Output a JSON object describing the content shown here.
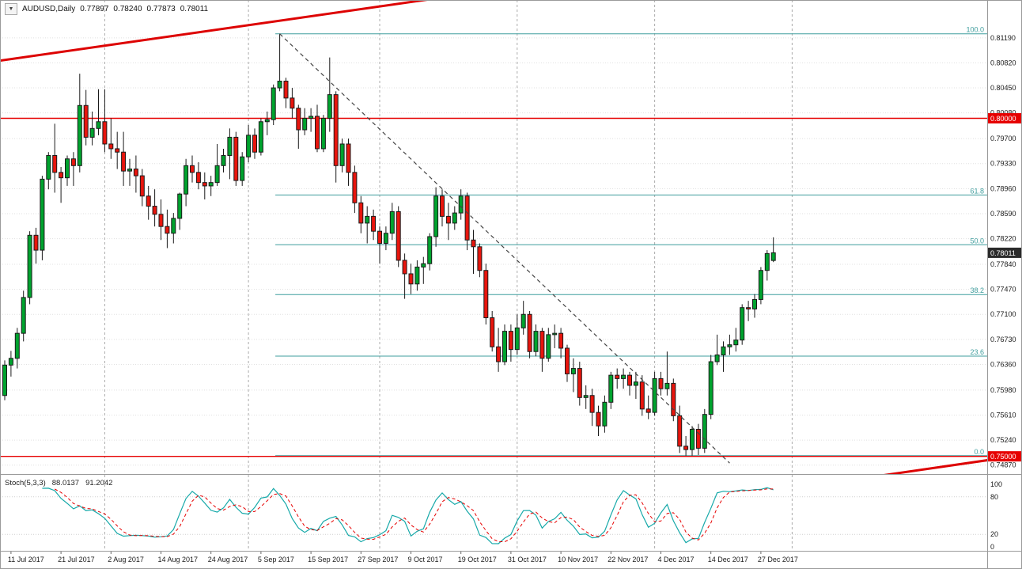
{
  "header": {
    "dropdown_icon": "▼",
    "symbol_period": "AUDUSD,Daily",
    "open": "0.77897",
    "high": "0.78240",
    "low": "0.77873",
    "close": "0.78011"
  },
  "colors": {
    "background": "#ffffff",
    "up": "#00a32e",
    "down": "#e8150d",
    "wick": "#1a1a1a",
    "grid": "#e0e0e0",
    "stoch_grid": "#cfcfcf",
    "separator": "#ababab",
    "fib": "#3f9d9d",
    "redline": "#e60000",
    "trend": "#dd0202",
    "dashed": "#444444",
    "stoch_main": "#17a9a9",
    "stoch_signal": "#e60000",
    "axis_text": "#1a1a1a",
    "tag_dark_bg": "#2a2a2a",
    "tag_text": "#ffffff",
    "frame": "#9a9a9a"
  },
  "chart_data": [
    {
      "type": "candlestick",
      "symbol": "AUDUSD",
      "timeframe": "Daily",
      "ohlc": [
        0.77897,
        0.7824,
        0.77873,
        0.78011
      ],
      "ylim": [
        0.7475,
        0.8175
      ],
      "y_ticks": [
        "0.81190",
        "0.80820",
        "0.80450",
        "0.80080",
        "0.79700",
        "0.79330",
        "0.78960",
        "0.78590",
        "0.78220",
        "0.77840",
        "0.77470",
        "0.77100",
        "0.76730",
        "0.76360",
        "0.75980",
        "0.75610",
        "0.75240",
        "0.74870"
      ],
      "x_labels": [
        {
          "i": 1,
          "t": "11 Jul 2017"
        },
        {
          "i": 9,
          "t": "21 Jul 2017"
        },
        {
          "i": 17,
          "t": "2 Aug 2017"
        },
        {
          "i": 25,
          "t": "14 Aug 2017"
        },
        {
          "i": 33,
          "t": "24 Aug 2017"
        },
        {
          "i": 41,
          "t": "5 Sep 2017"
        },
        {
          "i": 49,
          "t": "15 Sep 2017"
        },
        {
          "i": 57,
          "t": "27 Sep 2017"
        },
        {
          "i": 65,
          "t": "9 Oct 2017"
        },
        {
          "i": 73,
          "t": "19 Oct 2017"
        },
        {
          "i": 81,
          "t": "31 Oct 2017"
        },
        {
          "i": 89,
          "t": "10 Nov 2017"
        },
        {
          "i": 97,
          "t": "22 Nov 2017"
        },
        {
          "i": 105,
          "t": "4 Dec 2017"
        },
        {
          "i": 113,
          "t": "14 Dec 2017"
        },
        {
          "i": 121,
          "t": "27 Dec 2017"
        }
      ],
      "separators_i": [
        16,
        39,
        60,
        82,
        104,
        126
      ],
      "candles_format": "[open, high, low, close]",
      "candles": [
        [
          0.759,
          0.7642,
          0.7583,
          0.7635
        ],
        [
          0.7635,
          0.7656,
          0.7618,
          0.7645
        ],
        [
          0.7645,
          0.769,
          0.763,
          0.7682
        ],
        [
          0.7682,
          0.7745,
          0.767,
          0.7735
        ],
        [
          0.7735,
          0.7833,
          0.7725,
          0.7827
        ],
        [
          0.7827,
          0.7838,
          0.7785,
          0.7805
        ],
        [
          0.7805,
          0.7915,
          0.779,
          0.791
        ],
        [
          0.791,
          0.795,
          0.7895,
          0.7945
        ],
        [
          0.7945,
          0.7992,
          0.789,
          0.792
        ],
        [
          0.792,
          0.7928,
          0.7875,
          0.7912
        ],
        [
          0.7912,
          0.7945,
          0.79,
          0.794
        ],
        [
          0.794,
          0.795,
          0.79,
          0.793
        ],
        [
          0.793,
          0.8066,
          0.792,
          0.8019
        ],
        [
          0.8019,
          0.8042,
          0.796,
          0.7972
        ],
        [
          0.7972,
          0.801,
          0.796,
          0.7985
        ],
        [
          0.7985,
          0.8043,
          0.7975,
          0.7995
        ],
        [
          0.7995,
          0.8043,
          0.795,
          0.7962
        ],
        [
          0.7962,
          0.8,
          0.794,
          0.7955
        ],
        [
          0.7955,
          0.798,
          0.7925,
          0.795
        ],
        [
          0.795,
          0.798,
          0.79,
          0.7922
        ],
        [
          0.7922,
          0.794,
          0.79,
          0.7925
        ],
        [
          0.7925,
          0.7945,
          0.789,
          0.7915
        ],
        [
          0.7915,
          0.7925,
          0.787,
          0.7885
        ],
        [
          0.7885,
          0.79,
          0.785,
          0.787
        ],
        [
          0.787,
          0.7895,
          0.784,
          0.7858
        ],
        [
          0.7858,
          0.788,
          0.782,
          0.784
        ],
        [
          0.784,
          0.7865,
          0.7808,
          0.783
        ],
        [
          0.783,
          0.786,
          0.7815,
          0.7852
        ],
        [
          0.7852,
          0.789,
          0.7835,
          0.7888
        ],
        [
          0.7888,
          0.794,
          0.787,
          0.793
        ],
        [
          0.793,
          0.7945,
          0.7905,
          0.792
        ],
        [
          0.792,
          0.7935,
          0.7895,
          0.7905
        ],
        [
          0.7905,
          0.792,
          0.788,
          0.79
        ],
        [
          0.79,
          0.7915,
          0.7885,
          0.7905
        ],
        [
          0.7905,
          0.7962,
          0.79,
          0.793
        ],
        [
          0.793,
          0.7955,
          0.792,
          0.7945
        ],
        [
          0.7945,
          0.7985,
          0.791,
          0.7972
        ],
        [
          0.7972,
          0.798,
          0.79,
          0.7908
        ],
        [
          0.7908,
          0.795,
          0.79,
          0.7943
        ],
        [
          0.7943,
          0.799,
          0.7935,
          0.7975
        ],
        [
          0.7975,
          0.7985,
          0.794,
          0.795
        ],
        [
          0.795,
          0.8,
          0.7945,
          0.7995
        ],
        [
          0.7995,
          0.801,
          0.7975,
          0.7998
        ],
        [
          0.7998,
          0.805,
          0.799,
          0.8045
        ],
        [
          0.8045,
          0.8125,
          0.804,
          0.8055
        ],
        [
          0.8055,
          0.806,
          0.8015,
          0.803
        ],
        [
          0.803,
          0.8045,
          0.8,
          0.8015
        ],
        [
          0.8015,
          0.802,
          0.7955,
          0.7983
        ],
        [
          0.7983,
          0.8015,
          0.7975,
          0.8
        ],
        [
          0.8,
          0.8015,
          0.798,
          0.8003
        ],
        [
          0.8003,
          0.802,
          0.795,
          0.7955
        ],
        [
          0.7955,
          0.8005,
          0.795,
          0.8
        ],
        [
          0.8,
          0.809,
          0.798,
          0.8035
        ],
        [
          0.8035,
          0.804,
          0.7905,
          0.793
        ],
        [
          0.793,
          0.797,
          0.792,
          0.7962
        ],
        [
          0.7962,
          0.797,
          0.79,
          0.792
        ],
        [
          0.792,
          0.793,
          0.786,
          0.7875
        ],
        [
          0.7875,
          0.7885,
          0.783,
          0.7845
        ],
        [
          0.7845,
          0.787,
          0.7815,
          0.7855
        ],
        [
          0.7855,
          0.7865,
          0.782,
          0.7833
        ],
        [
          0.7833,
          0.784,
          0.7785,
          0.7815
        ],
        [
          0.7815,
          0.784,
          0.7805,
          0.783
        ],
        [
          0.783,
          0.7875,
          0.782,
          0.7862
        ],
        [
          0.7862,
          0.787,
          0.778,
          0.779
        ],
        [
          0.779,
          0.78,
          0.7733,
          0.777
        ],
        [
          0.777,
          0.7785,
          0.774,
          0.7755
        ],
        [
          0.7755,
          0.779,
          0.7745,
          0.778
        ],
        [
          0.778,
          0.7795,
          0.7755,
          0.7785
        ],
        [
          0.7785,
          0.783,
          0.7775,
          0.7825
        ],
        [
          0.7825,
          0.7898,
          0.781,
          0.7885
        ],
        [
          0.7885,
          0.7895,
          0.784,
          0.7855
        ],
        [
          0.7855,
          0.7875,
          0.782,
          0.7845
        ],
        [
          0.7845,
          0.787,
          0.7835,
          0.786
        ],
        [
          0.786,
          0.7895,
          0.785,
          0.7885
        ],
        [
          0.7885,
          0.789,
          0.7805,
          0.782
        ],
        [
          0.782,
          0.7835,
          0.777,
          0.781
        ],
        [
          0.781,
          0.7815,
          0.7765,
          0.7775
        ],
        [
          0.7775,
          0.7785,
          0.7695,
          0.7705
        ],
        [
          0.7705,
          0.7715,
          0.7655,
          0.7662
        ],
        [
          0.7662,
          0.769,
          0.7625,
          0.764
        ],
        [
          0.764,
          0.7695,
          0.7635,
          0.7685
        ],
        [
          0.7685,
          0.7695,
          0.764,
          0.7658
        ],
        [
          0.7658,
          0.771,
          0.765,
          0.769
        ],
        [
          0.769,
          0.773,
          0.768,
          0.771
        ],
        [
          0.771,
          0.7715,
          0.7645,
          0.7655
        ],
        [
          0.7655,
          0.7695,
          0.7648,
          0.7685
        ],
        [
          0.7685,
          0.769,
          0.7625,
          0.7645
        ],
        [
          0.7645,
          0.769,
          0.764,
          0.768
        ],
        [
          0.768,
          0.7695,
          0.766,
          0.7682
        ],
        [
          0.7682,
          0.769,
          0.7645,
          0.766
        ],
        [
          0.766,
          0.7665,
          0.761,
          0.7622
        ],
        [
          0.7622,
          0.7645,
          0.7595,
          0.763
        ],
        [
          0.763,
          0.764,
          0.7575,
          0.7587
        ],
        [
          0.7587,
          0.7605,
          0.757,
          0.759
        ],
        [
          0.759,
          0.76,
          0.7545,
          0.7565
        ],
        [
          0.7565,
          0.7575,
          0.753,
          0.7545
        ],
        [
          0.7545,
          0.759,
          0.7535,
          0.758
        ],
        [
          0.758,
          0.7625,
          0.757,
          0.762
        ],
        [
          0.762,
          0.763,
          0.76,
          0.7615
        ],
        [
          0.7615,
          0.763,
          0.76,
          0.762
        ],
        [
          0.762,
          0.7625,
          0.759,
          0.7605
        ],
        [
          0.7605,
          0.7625,
          0.7585,
          0.761
        ],
        [
          0.761,
          0.762,
          0.756,
          0.757
        ],
        [
          0.757,
          0.759,
          0.7555,
          0.7565
        ],
        [
          0.7565,
          0.7625,
          0.756,
          0.7615
        ],
        [
          0.7615,
          0.7625,
          0.759,
          0.76
        ],
        [
          0.76,
          0.7655,
          0.759,
          0.7608
        ],
        [
          0.7608,
          0.7615,
          0.7552,
          0.756
        ],
        [
          0.756,
          0.7575,
          0.7505,
          0.7515
        ],
        [
          0.7515,
          0.753,
          0.7501,
          0.751
        ],
        [
          0.751,
          0.7545,
          0.7501,
          0.754
        ],
        [
          0.754,
          0.7548,
          0.7502,
          0.7512
        ],
        [
          0.7512,
          0.757,
          0.7505,
          0.7562
        ],
        [
          0.7562,
          0.765,
          0.7555,
          0.764
        ],
        [
          0.764,
          0.768,
          0.7635,
          0.765
        ],
        [
          0.765,
          0.767,
          0.7625,
          0.7662
        ],
        [
          0.7662,
          0.768,
          0.765,
          0.7665
        ],
        [
          0.7665,
          0.769,
          0.7655,
          0.7672
        ],
        [
          0.7672,
          0.7725,
          0.7665,
          0.772
        ],
        [
          0.772,
          0.773,
          0.77,
          0.7718
        ],
        [
          0.7718,
          0.774,
          0.7705,
          0.7732
        ],
        [
          0.7732,
          0.778,
          0.7725,
          0.7775
        ],
        [
          0.7775,
          0.7805,
          0.776,
          0.78
        ],
        [
          0.77897,
          0.7824,
          0.77873,
          0.78011
        ]
      ],
      "hlines": [
        {
          "price": 0.8,
          "label": "0.80000",
          "color": "#e60000"
        },
        {
          "price": 0.75,
          "label": "0.75000",
          "color": "#e60000"
        }
      ],
      "current_price": {
        "value": 0.78011,
        "label": "0.78011"
      },
      "fibo": {
        "start_i": 43.3,
        "levels": [
          {
            "pct": "0.0",
            "price": 0.7501
          },
          {
            "pct": "23.6",
            "price": 0.76482
          },
          {
            "pct": "38.2",
            "price": 0.77393
          },
          {
            "pct": "50.0",
            "price": 0.7813
          },
          {
            "pct": "61.8",
            "price": 0.78866
          },
          {
            "pct": "100.0",
            "price": 0.8125
          }
        ]
      },
      "trend_dashed": {
        "from": [
          44,
          0.8125
        ],
        "to": [
          116,
          0.749
        ]
      },
      "trend_red": [
        {
          "from": [
            -1,
            0.8085
          ],
          "to": [
            71,
            0.818
          ]
        },
        {
          "from": [
            138.5,
            0.74692
          ],
          "to": [
            163,
            0.7502
          ]
        }
      ]
    },
    {
      "type": "line",
      "name": "Stoch(5,3,3)",
      "k_display": "88.0137",
      "d_display": "91.2042",
      "params": {
        "k_period": 5,
        "slowing": 3,
        "d_period": 3
      },
      "ylim": [
        0,
        100
      ],
      "y_ticks": [
        "100",
        "80",
        "20",
        "0"
      ],
      "level_lines": [
        80,
        20
      ],
      "derived_from": "chart_data.0.candles"
    }
  ]
}
